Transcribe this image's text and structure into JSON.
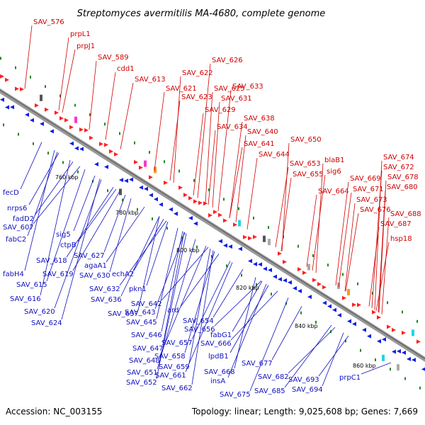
{
  "title": "Streptomyces avermitilis MA-4680, complete genome",
  "footer": {
    "accession": "Accession: NC_003155",
    "summary": "Topology: linear; Length: 9,025,608 bp; Genes: 7,669"
  },
  "scale_ticks": [
    "760 kbp",
    "780 kbp",
    "800 kbp",
    "820 kbp",
    "840 kbp",
    "860 kbp"
  ],
  "top_labels": [
    "SAV_576",
    "prpL1",
    "prpJ1",
    "SAV_589",
    "cdd1",
    "SAV_613",
    "SAV_622",
    "SAV_621",
    "SAV_626",
    "SAV_625",
    "SAV_623",
    "SAV_633",
    "SAV_631",
    "SAV_629",
    "SAV_638",
    "SAV_634",
    "SAV_640",
    "SAV_641",
    "SAV_650",
    "SAV_644",
    "SAV_653",
    "blaB1",
    "SAV_655",
    "sig6",
    "SAV_674",
    "SAV_672",
    "SAV_669",
    "SAV_678",
    "SAV_664",
    "SAV_671",
    "SAV_680",
    "SAV_673",
    "SAV_676",
    "SAV_688",
    "SAV_687",
    "hsp18"
  ],
  "bottom_labels": [
    "fecD",
    "nrps6",
    "fadD2",
    "SAV_607",
    "sig5",
    "fabC2",
    "ctpB",
    "SAV_618",
    "SAV_627",
    "fabH4",
    "agaA1",
    "SAV_619",
    "SAV_630",
    "echA2",
    "SAV_615",
    "SAV_632",
    "pkn1",
    "SAV_616",
    "SAV_636",
    "SAV_642",
    "SAV_637",
    "SAV_643",
    "ard",
    "SAV_620",
    "SAV_645",
    "SAV_654",
    "SAV_624",
    "SAV_656",
    "SAV_646",
    "fabG1",
    "SAV_657",
    "SAV_666",
    "SAV_647",
    "SAV_658",
    "lpdB1",
    "SAV_648",
    "SAV_659",
    "SAV_677",
    "SAV_651",
    "SAV_661",
    "SAV_668",
    "SAV_652",
    "insA",
    "SAV_682",
    "SAV_662",
    "SAV_693",
    "SAV_675",
    "SAV_685",
    "SAV_694",
    "prpC1"
  ],
  "colors": {
    "top_label": "#d00000",
    "bottom_label": "#1010c0",
    "top_strand_gene": "#ff2020",
    "bottom_strand_gene": "#1020e0",
    "backbone": "#999999"
  }
}
